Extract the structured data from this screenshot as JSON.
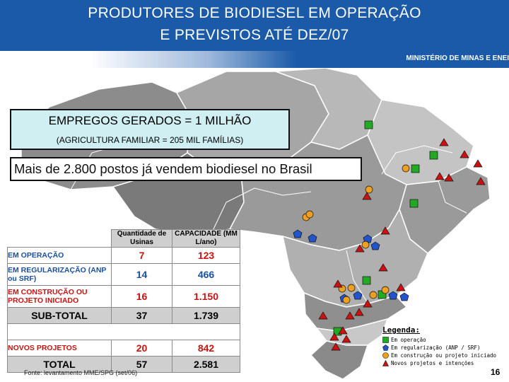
{
  "header": {
    "title_line1": "PRODUTORES DE BIODIESEL EM OPERAÇÃO",
    "title_line2": "E PREVISTOS ATÉ DEZ/07",
    "ministerio": "MINISTÉRIO DE MINAS E ENEI"
  },
  "boxes": {
    "empregos": "EMPREGOS GERADOS  =  1 MILHÃO",
    "agricultura": "(AGRICULTURA FAMILIAR = 205 MIL FAMÍLIAS)",
    "postos": "Mais de 2.800 postos já vendem biodiesel no Brasil"
  },
  "table": {
    "header_qty": "Quantidade de Usinas",
    "header_cap": "CAPACIDADE (MM L/ano)",
    "rows": [
      {
        "label": "EM OPERAÇÃO",
        "qty": "7",
        "cap": "123"
      },
      {
        "label": "EM REGULARIZAÇÃO (ANP ou SRF)",
        "qty": "14",
        "cap": "466"
      },
      {
        "label": "EM CONSTRUÇÃO OU PROJETO INICIADO",
        "qty": "16",
        "cap": "1.150"
      }
    ],
    "subtotal": {
      "label": "SUB-TOTAL",
      "qty": "37",
      "cap": "1.739"
    },
    "novos": {
      "label": "NOVOS PROJETOS",
      "qty": "20",
      "cap": "842"
    },
    "total": {
      "label": "TOTAL",
      "qty": "57",
      "cap": "2.581"
    }
  },
  "legend": {
    "title": "Legenda:",
    "items": [
      {
        "label": "Em operação",
        "shape": "square",
        "color": "#22aa22"
      },
      {
        "label": "Em regularização (ANP / SRF)",
        "shape": "pentagon",
        "color": "#2255cc"
      },
      {
        "label": "Em construção ou projeto iniciado",
        "shape": "circle",
        "color": "#f0a020"
      },
      {
        "label": "Novos projetos e intenções",
        "shape": "triangle",
        "color": "#cc1111"
      }
    ]
  },
  "footer": {
    "fonte": "Fonte: levantamento MME/SPG (set/06)",
    "page": "16"
  },
  "colors": {
    "header_blue": "#1a5aa8",
    "accent_red": "#cc1111",
    "accent_blue": "#1a4fa0",
    "box_cyan": "#cfeff2"
  }
}
